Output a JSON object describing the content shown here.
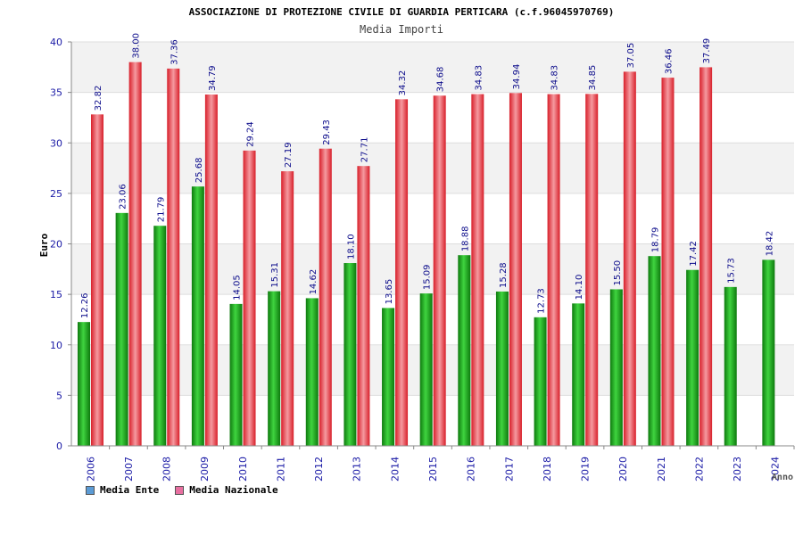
{
  "chart_data": {
    "type": "bar",
    "title": "ASSOCIAZIONE DI PROTEZIONE CIVILE DI GUARDIA PERTICARA (c.f.96045970769)",
    "subtitle": "Media Importi",
    "xlabel": "Anno",
    "ylabel": "Euro",
    "ylim": [
      0,
      40
    ],
    "yticks": [
      0,
      5,
      10,
      15,
      20,
      25,
      30,
      35,
      40
    ],
    "categories": [
      "2006",
      "2007",
      "2008",
      "2009",
      "2010",
      "2011",
      "2012",
      "2013",
      "2014",
      "2015",
      "2016",
      "2017",
      "2018",
      "2019",
      "2020",
      "2021",
      "2022",
      "2023",
      "2024"
    ],
    "series": [
      {
        "name": "Media Ente",
        "color": "#22aa22",
        "values": [
          12.26,
          23.06,
          21.79,
          25.68,
          14.05,
          15.31,
          14.62,
          18.1,
          13.65,
          15.09,
          18.88,
          15.28,
          12.73,
          14.1,
          15.5,
          18.79,
          17.42,
          15.73,
          18.42
        ],
        "labels": [
          "12.26",
          "23.06",
          "21.79",
          "25.68",
          "14.05",
          "15.31",
          "14.62",
          "18.10",
          "13.65",
          "15.09",
          "18.88",
          "15.28",
          "12.73",
          "14.10",
          "15.50",
          "18.79",
          "17.42",
          "15.73",
          "18.42"
        ]
      },
      {
        "name": "Media Nazionale",
        "color": "#e83a44",
        "values": [
          32.82,
          38.0,
          37.36,
          34.79,
          29.24,
          27.19,
          29.43,
          27.71,
          34.32,
          34.68,
          34.83,
          34.94,
          34.83,
          34.85,
          37.05,
          36.46,
          37.49,
          null,
          null
        ],
        "labels": [
          "32.82",
          "38.00",
          "37.36",
          "34.79",
          "29.24",
          "27.19",
          "29.43",
          "27.71",
          "34.32",
          "34.68",
          "34.83",
          "34.94",
          "34.83",
          "34.85",
          "37.05",
          "36.46",
          "37.49",
          null,
          null
        ]
      }
    ],
    "legend": [
      {
        "label": "Media Ente",
        "color": "#5b9bd5"
      },
      {
        "label": "Media Nazionale",
        "color": "#e86fa0"
      }
    ]
  }
}
